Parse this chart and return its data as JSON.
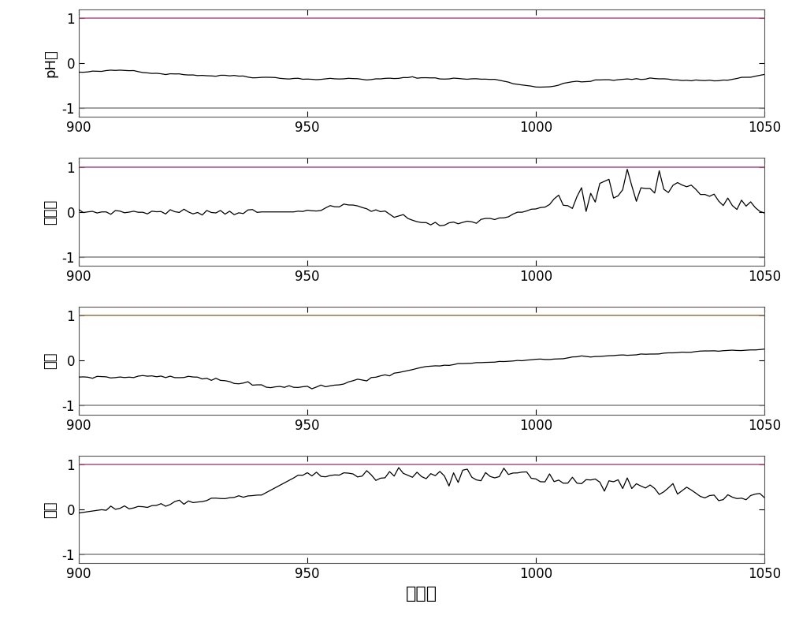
{
  "xlim": [
    900,
    1050
  ],
  "ylim": [
    -1.2,
    1.2
  ],
  "yticks": [
    -1,
    0,
    1
  ],
  "xticks": [
    900,
    950,
    1000,
    1050
  ],
  "xlabel": "采样点",
  "ylabels": [
    "pH值",
    "耗氧量",
    "水温",
    "浊度"
  ],
  "hline_top_colors": [
    "#b06090",
    "#b06090",
    "#a08060",
    "#b06090"
  ],
  "hline_bot_colors": [
    "#909090",
    "#909090",
    "#909090",
    "#909090"
  ],
  "line_color": "#000000",
  "bg_color": "#ffffff",
  "xlabel_fontsize": 16,
  "ylabel_fontsize": 13,
  "tick_fontsize": 12,
  "n_points": 151
}
